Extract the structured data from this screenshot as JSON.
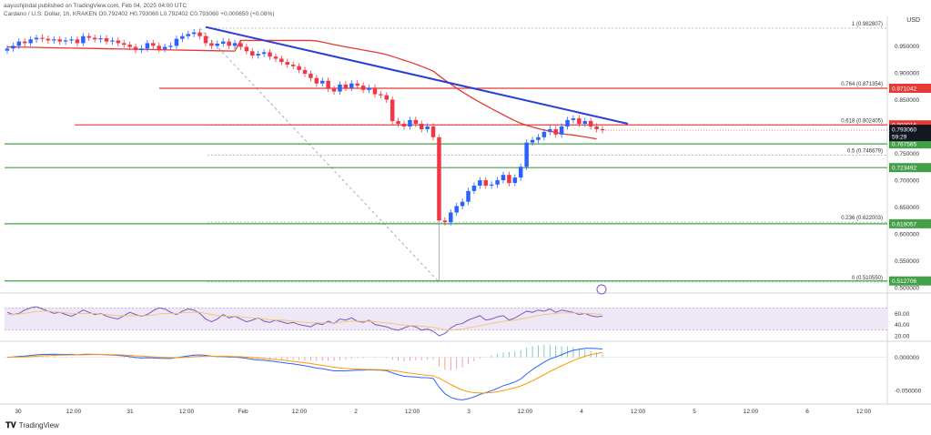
{
  "header": {
    "author": "aayushjindal published on TradingView.com, Feb 04, 2025 04:00 UTC",
    "symbol": "Cardano / U.S. Dollar, 1h, KRAKEN",
    "ohlc": "O0.792402 H0.793060 L0.792402 C0.793060 +0.000650 (+0.08%)"
  },
  "currency": "USD",
  "footer": {
    "brand": "TradingView"
  },
  "colors": {
    "up": "#2962ff",
    "down": "#f23645",
    "ma": "#e53935",
    "trend": "#2a3fd4",
    "support": "#43a047",
    "resist": "#e53935",
    "rsi": "#7e57c2",
    "macd_fast": "#2962ff",
    "macd_slow": "#ff9800"
  },
  "chart_data": [
    {
      "type": "candlestick",
      "y_ticks": [
        "0.950000",
        "0.900000",
        "0.850000",
        "0.800000",
        "0.750000",
        "0.700000",
        "0.650000",
        "0.600000",
        "0.550000",
        "0.500000"
      ],
      "ylim": [
        0.497,
        0.998
      ],
      "x_ticks": [
        "30",
        "12:00",
        "31",
        "12:00",
        "Feb",
        "12:00",
        "2",
        "12:00",
        "3",
        "12:00",
        "4",
        "12:00",
        "5",
        "12:00",
        "6",
        "12:00"
      ],
      "fib_levels": [
        {
          "label": "1 (0.982807)",
          "value": 0.982807
        },
        {
          "label": "0.764 (0.871354)",
          "value": 0.871354
        },
        {
          "label": "0.618 (0.802405)",
          "value": 0.802405
        },
        {
          "label": "0.5 (0.746679)",
          "value": 0.746679
        },
        {
          "label": "0.236 (0.622003)",
          "value": 0.622003
        },
        {
          "label": "0 (0.510550)",
          "value": 0.51055
        }
      ],
      "horizontal_lines": [
        {
          "value": 0.871042,
          "label": "0.871042",
          "color": "#e53935"
        },
        {
          "value": 0.803016,
          "label": "0.803016",
          "color": "#e53935"
        },
        {
          "value": 0.767565,
          "label": "0.767565",
          "color": "#43a047"
        },
        {
          "value": 0.723492,
          "label": "0.723492",
          "color": "#43a047"
        },
        {
          "value": 0.619057,
          "label": "0.619057",
          "color": "#43a047"
        },
        {
          "value": 0.512706,
          "label": "0.512706",
          "color": "#43a047"
        }
      ],
      "current_price": {
        "value": 0.79306,
        "label": "0.793060",
        "countdown": "59:29"
      },
      "closes": [
        0.945,
        0.95,
        0.958,
        0.955,
        0.962,
        0.965,
        0.963,
        0.96,
        0.962,
        0.958,
        0.96,
        0.962,
        0.955,
        0.968,
        0.965,
        0.962,
        0.964,
        0.958,
        0.96,
        0.955,
        0.952,
        0.948,
        0.942,
        0.945,
        0.955,
        0.95,
        0.944,
        0.948,
        0.95,
        0.963,
        0.968,
        0.972,
        0.975,
        0.968,
        0.955,
        0.95,
        0.954,
        0.958,
        0.95,
        0.955,
        0.948,
        0.94,
        0.932,
        0.935,
        0.938,
        0.93,
        0.926,
        0.92,
        0.915,
        0.912,
        0.905,
        0.898,
        0.89,
        0.88,
        0.885,
        0.87,
        0.865,
        0.878,
        0.872,
        0.88,
        0.876,
        0.868,
        0.872,
        0.86,
        0.858,
        0.85,
        0.81,
        0.805,
        0.8,
        0.812,
        0.805,
        0.795,
        0.8,
        0.78,
        0.625,
        0.622,
        0.64,
        0.652,
        0.66,
        0.68,
        0.69,
        0.7,
        0.69,
        0.692,
        0.7,
        0.71,
        0.695,
        0.705,
        0.725,
        0.77,
        0.775,
        0.78,
        0.79,
        0.795,
        0.785,
        0.8,
        0.812,
        0.815,
        0.805,
        0.81,
        0.8,
        0.795,
        0.793
      ],
      "sma_note": "red moving average"
    },
    {
      "type": "line",
      "name_note": "RSI pane",
      "y_ticks": [
        "60.00",
        "40.00",
        "20.00"
      ],
      "ylim": [
        15,
        90
      ],
      "band": [
        30,
        70
      ],
      "values": [
        62,
        58,
        60,
        66,
        70,
        72,
        68,
        64,
        60,
        62,
        58,
        55,
        60,
        66,
        62,
        58,
        60,
        55,
        52,
        50,
        56,
        62,
        58,
        55,
        58,
        65,
        70,
        68,
        62,
        58,
        64,
        68,
        66,
        60,
        50,
        45,
        50,
        58,
        52,
        55,
        50,
        45,
        48,
        52,
        46,
        44,
        48,
        45,
        42,
        44,
        40,
        38,
        36,
        42,
        40,
        46,
        42,
        50,
        48,
        52,
        46,
        44,
        48,
        40,
        38,
        36,
        32,
        30,
        34,
        38,
        36,
        30,
        32,
        28,
        20,
        24,
        34,
        40,
        42,
        48,
        52,
        56,
        48,
        50,
        54,
        56,
        48,
        52,
        58,
        64,
        62,
        66,
        64,
        68,
        62,
        66,
        64,
        62,
        58,
        60,
        56,
        54,
        55
      ],
      "signal": [
        58,
        58,
        59,
        60,
        62,
        63,
        64,
        64,
        63,
        62,
        61,
        60,
        60,
        60,
        60,
        60,
        59,
        58,
        57,
        56,
        56,
        56,
        56,
        56,
        56,
        57,
        59,
        60,
        60,
        60,
        61,
        62,
        62,
        62,
        60,
        58,
        56,
        55,
        55,
        55,
        54,
        53,
        52,
        51,
        50,
        49,
        48,
        48,
        47,
        46,
        45,
        44,
        43,
        43,
        43,
        43,
        43,
        44,
        45,
        46,
        46,
        46,
        46,
        45,
        44,
        43,
        42,
        40,
        39,
        38,
        38,
        37,
        36,
        35,
        33,
        31,
        30,
        31,
        32,
        34,
        36,
        38,
        40,
        42,
        44,
        46,
        47,
        48,
        50,
        52,
        54,
        56,
        58,
        59,
        60,
        61,
        61,
        61,
        61,
        60,
        60,
        59,
        58
      ]
    },
    {
      "type": "line",
      "name_note": "MACD pane",
      "y_ticks": [
        "0.000000",
        "-0.050000"
      ],
      "ylim": [
        -0.065,
        0.02
      ]
    }
  ]
}
